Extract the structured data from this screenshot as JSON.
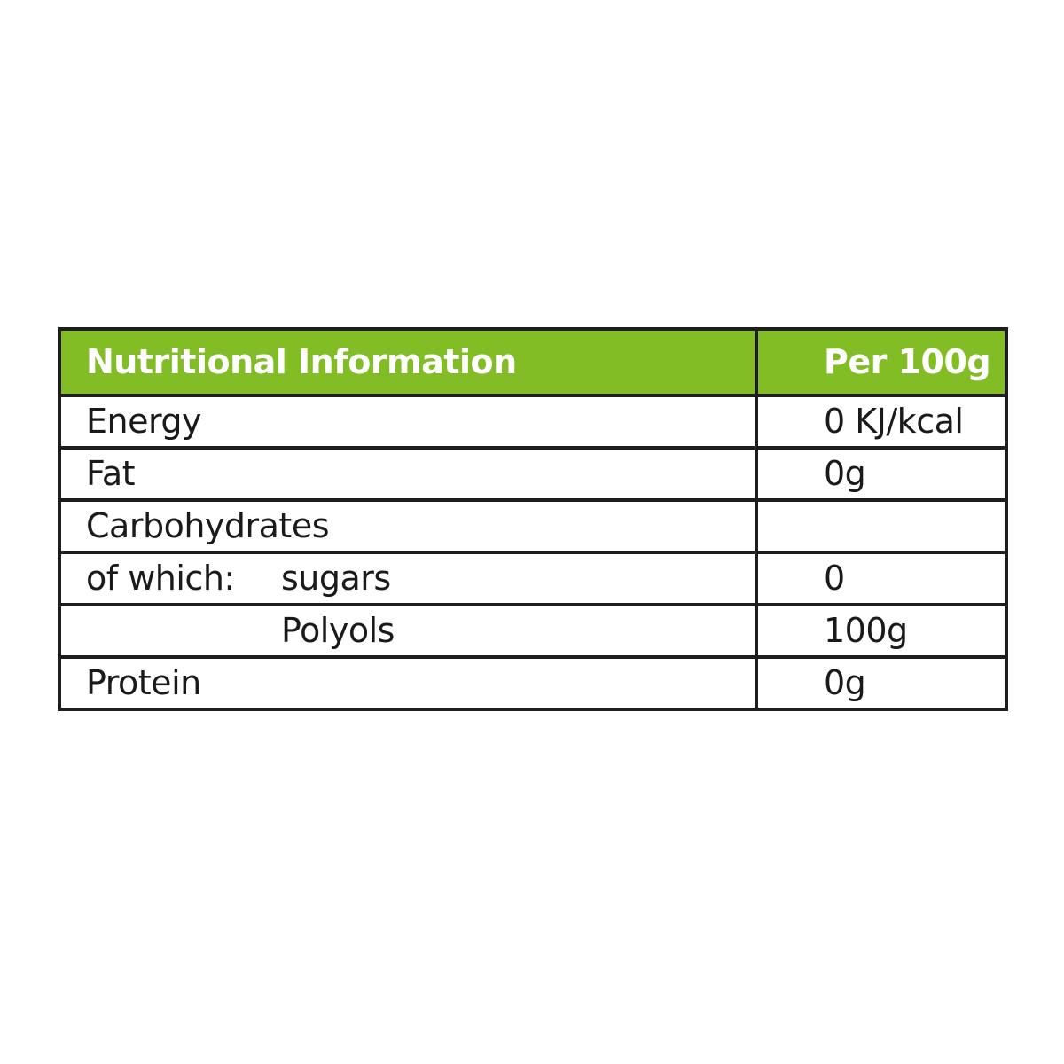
{
  "table": {
    "header_color": "#82bd26",
    "headers": [
      "Nutritional Information",
      "Per 100g"
    ],
    "rows": [
      {
        "label": "Energy",
        "value": "0 KJ/kcal"
      },
      {
        "label": "Fat",
        "value": "0g"
      },
      {
        "label": "Carbohydrates",
        "value": ""
      },
      {
        "prefix": "of which:",
        "label": "sugars",
        "value": "0"
      },
      {
        "label": "Polyols",
        "value": "100g"
      },
      {
        "label": "Protein",
        "value": "0g"
      }
    ]
  }
}
